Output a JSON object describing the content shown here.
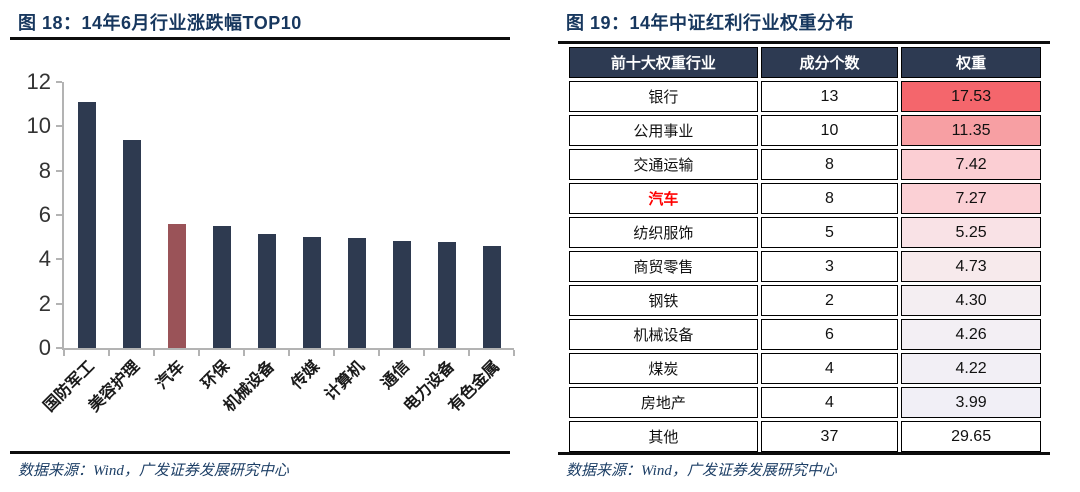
{
  "left_panel": {
    "title_full": "图 18：14年6月行业涨跌幅TOP10",
    "source": "数据来源：Wind，广发证券发展研究中心"
  },
  "right_panel": {
    "title_full": "图 19：14年中证红利行业权重分布",
    "source": "数据来源：Wind，广发证券发展研究中心"
  },
  "colors": {
    "title_navy": "#17375e",
    "table_header_bg": "#2d3a52",
    "highlight_text_red": "#ff0000",
    "axis_gray": "#b3b3b3"
  },
  "chart_data": [
    {
      "type": "bar",
      "title": "14年6月行业涨跌幅TOP10",
      "categories": [
        "国防军工",
        "美容护理",
        "汽车",
        "环保",
        "机械设备",
        "传媒",
        "计算机",
        "通信",
        "电力设备",
        "有色金属"
      ],
      "values": [
        11.1,
        9.4,
        5.6,
        5.5,
        5.15,
        5.0,
        4.95,
        4.85,
        4.8,
        4.6
      ],
      "highlight_index": 2,
      "bar_color": "#2e3a50",
      "highlight_color": "#9a5358",
      "xlabel": "",
      "ylabel": "",
      "ylim": [
        0,
        12
      ],
      "yticks": [
        0,
        2,
        4,
        6,
        8,
        10,
        12
      ],
      "grid": false,
      "legend": false
    },
    {
      "type": "table",
      "title": "14年中证红利行业权重分布",
      "headers": [
        "前十大权重行业",
        "成分个数",
        "权重"
      ],
      "rows": [
        {
          "industry": "银行",
          "count": "13",
          "weight": "17.53",
          "weight_bg": "#f4666c",
          "highlight": false
        },
        {
          "industry": "公用事业",
          "count": "10",
          "weight": "11.35",
          "weight_bg": "#f79fa3",
          "highlight": false
        },
        {
          "industry": "交通运输",
          "count": "8",
          "weight": "7.42",
          "weight_bg": "#fbced3",
          "highlight": false
        },
        {
          "industry": "汽车",
          "count": "8",
          "weight": "7.27",
          "weight_bg": "#fbd0d5",
          "highlight": true
        },
        {
          "industry": "纺织服饰",
          "count": "5",
          "weight": "5.25",
          "weight_bg": "#f9e2e6",
          "highlight": false
        },
        {
          "industry": "商贸零售",
          "count": "3",
          "weight": "4.73",
          "weight_bg": "#f7eaec",
          "highlight": false
        },
        {
          "industry": "钢铁",
          "count": "2",
          "weight": "4.30",
          "weight_bg": "#f4eef2",
          "highlight": false
        },
        {
          "industry": "机械设备",
          "count": "6",
          "weight": "4.26",
          "weight_bg": "#f3eff4",
          "highlight": false
        },
        {
          "industry": "煤炭",
          "count": "4",
          "weight": "4.22",
          "weight_bg": "#f2eff5",
          "highlight": false
        },
        {
          "industry": "房地产",
          "count": "4",
          "weight": "3.99",
          "weight_bg": "#f1eff6",
          "highlight": false
        },
        {
          "industry": "其他",
          "count": "37",
          "weight": "29.65",
          "weight_bg": "#ffffff",
          "highlight": false
        }
      ]
    }
  ]
}
